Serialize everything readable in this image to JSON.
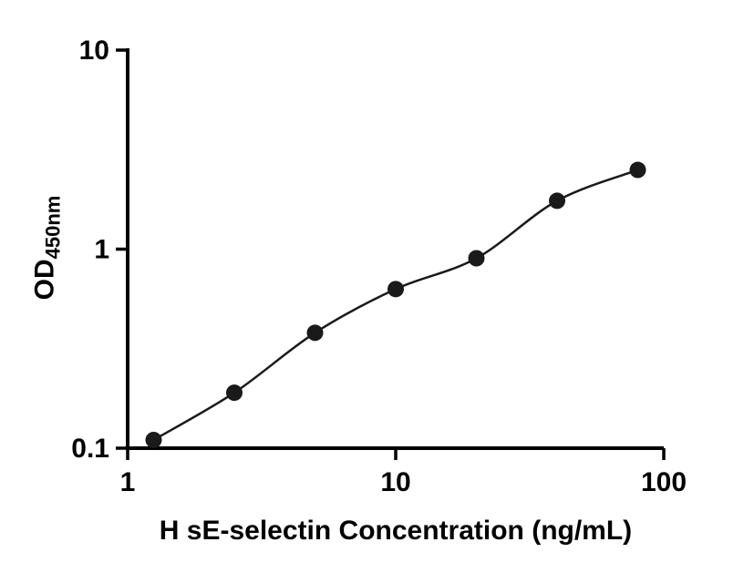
{
  "chart_data": {
    "type": "scatter",
    "title": "",
    "xlabel": "H sE-selectin Concentration (ng/mL)",
    "ylabel": "OD",
    "ylabel_sub": "450nm",
    "x_scale": "log",
    "y_scale": "log",
    "xlim": [
      1,
      100
    ],
    "ylim": [
      0.1,
      10
    ],
    "x_ticks": [
      "1",
      "10",
      "100"
    ],
    "y_ticks": [
      "0.1",
      "1",
      "10"
    ],
    "grid": false,
    "legend": null,
    "points": [
      {
        "x": 1.25,
        "y": 0.11
      },
      {
        "x": 2.5,
        "y": 0.19
      },
      {
        "x": 5,
        "y": 0.38
      },
      {
        "x": 10,
        "y": 0.63
      },
      {
        "x": 20,
        "y": 0.9
      },
      {
        "x": 40,
        "y": 1.75
      },
      {
        "x": 80,
        "y": 2.5
      }
    ],
    "marker": {
      "shape": "circle",
      "color": "#1a1a1a",
      "radius": 9
    },
    "curve_color": "#1a1a1a",
    "axis_color": "#000000"
  }
}
